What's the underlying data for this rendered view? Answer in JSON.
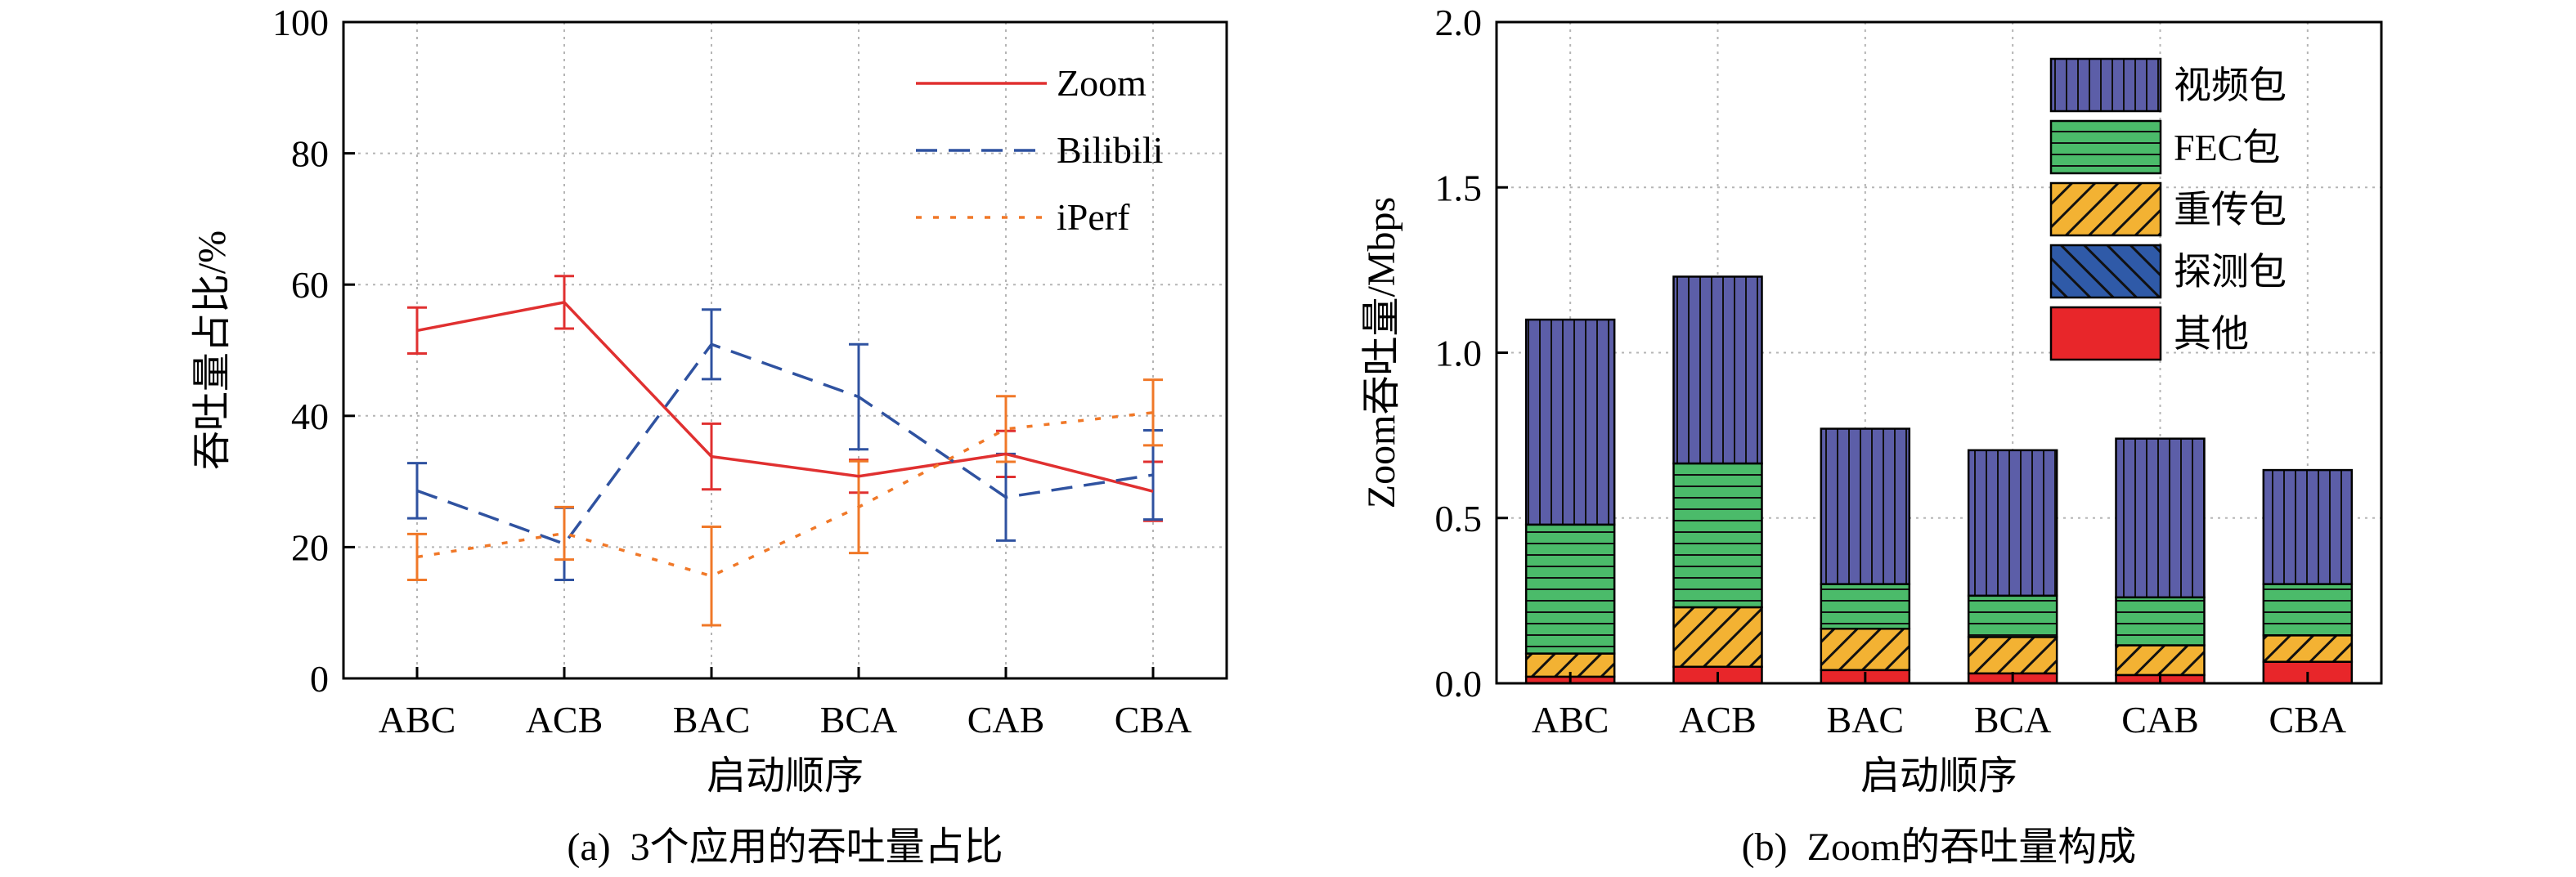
{
  "chart_data": [
    {
      "type": "line",
      "caption": "(a)  3个应用的吞吐量占比",
      "xlabel": "启动顺序",
      "ylabel": "吞吐量占比/%",
      "categories": [
        "ABC",
        "ACB",
        "BAC",
        "BCA",
        "CAB",
        "CBA"
      ],
      "ylim": [
        0,
        100
      ],
      "yticks": [
        0,
        20,
        40,
        60,
        80,
        100
      ],
      "grid": true,
      "legend_position": "top-right",
      "series": [
        {
          "name": "Zoom",
          "color": "#e03030",
          "style": "solid",
          "values": [
            53,
            57.3,
            33.8,
            30.8,
            34.2,
            28.5
          ],
          "errors": [
            3.5,
            4,
            5,
            2.5,
            3.5,
            4.5
          ]
        },
        {
          "name": "Bilibili",
          "color": "#2f52a0",
          "style": "dashed",
          "values": [
            28.6,
            20.5,
            50.9,
            42.9,
            27.6,
            31.0
          ],
          "errors": [
            4.2,
            5.5,
            5.3,
            8,
            6.6,
            6.8
          ]
        },
        {
          "name": "iPerf",
          "color": "#f07828",
          "style": "dotted",
          "values": [
            18.5,
            22.1,
            15.6,
            26.1,
            38.0,
            40.5
          ],
          "errors": [
            3.5,
            4,
            7.5,
            7,
            5,
            5
          ]
        }
      ]
    },
    {
      "type": "bar",
      "stacked": true,
      "caption": "(b)  Zoom的吞吐量构成",
      "xlabel": "启动顺序",
      "ylabel": "Zoom吞吐量/Mbps",
      "categories": [
        "ABC",
        "ACB",
        "BAC",
        "BCA",
        "CAB",
        "CBA"
      ],
      "ylim": [
        0,
        2.0
      ],
      "yticks": [
        "0.0",
        "0.5",
        "1.0",
        "1.5",
        "2.0"
      ],
      "grid": true,
      "legend_position": "top-right",
      "series": [
        {
          "name": "其他",
          "color": "#e8262a",
          "pattern": "solid",
          "values": [
            0.02,
            0.05,
            0.04,
            0.03,
            0.025,
            0.065
          ]
        },
        {
          "name": "探测包",
          "color": "#2f5aa8",
          "pattern": "diagonal-back",
          "values": [
            0,
            0,
            0,
            0,
            0,
            0
          ]
        },
        {
          "name": "重传包",
          "color": "#f3b233",
          "pattern": "diagonal",
          "values": [
            0.07,
            0.18,
            0.125,
            0.11,
            0.09,
            0.08
          ]
        },
        {
          "name": "FEC包",
          "color": "#4bbb6a",
          "pattern": "horizontal",
          "values": [
            0.39,
            0.435,
            0.135,
            0.125,
            0.145,
            0.155
          ]
        },
        {
          "name": "视频包",
          "color": "#5c5ea8",
          "pattern": "vertical",
          "values": [
            0.62,
            0.565,
            0.47,
            0.44,
            0.48,
            0.345
          ]
        }
      ]
    }
  ]
}
